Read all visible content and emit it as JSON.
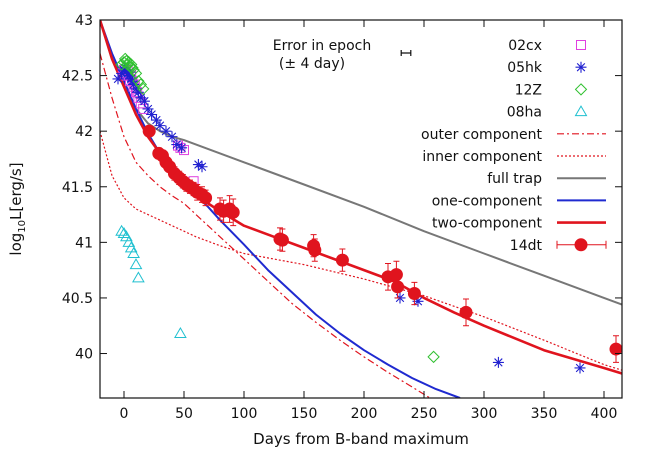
{
  "chart_data": {
    "type": "scatter",
    "title": "",
    "xlabel": "Days from B-band maximum",
    "ylabel_main": "log",
    "ylabel_sub": "10",
    "ylabel_rest": "L[erg/s]",
    "xlim": [
      -20,
      415
    ],
    "ylim": [
      39.6,
      43.0
    ],
    "x_ticks": [
      0,
      50,
      100,
      150,
      200,
      250,
      300,
      350,
      400
    ],
    "y_ticks": [
      40,
      40.5,
      41,
      41.5,
      42,
      42.5,
      43
    ],
    "y_tick_labels": [
      "40",
      "40.5",
      "41",
      "41.5",
      "42",
      "42.5",
      "43"
    ],
    "grid": false,
    "legend_position": "top-right",
    "annotation": {
      "line1": "Error in epoch",
      "line2": "(± 4 day)",
      "center_x": 235,
      "half_width": 4,
      "y": 42.7
    },
    "colors": {
      "c02cx": "#e040e0",
      "c05hk": "#2020d0",
      "c12Z": "#30c030",
      "c08ha": "#20c0d0",
      "red": "#e0141e",
      "gray": "#777777",
      "blue": "#1f2ad0"
    },
    "series": [
      {
        "name": "02cx",
        "kind": "points",
        "marker": "square",
        "color_key": "c02cx",
        "points": [
          [
            -1,
            42.52
          ],
          [
            0,
            42.55
          ],
          [
            1,
            42.55
          ],
          [
            2,
            42.5
          ],
          [
            3,
            42.55
          ],
          [
            4,
            42.5
          ],
          [
            5,
            42.45
          ],
          [
            6,
            42.5
          ],
          [
            7,
            42.45
          ],
          [
            8,
            42.4
          ],
          [
            9,
            42.42
          ],
          [
            10,
            42.35
          ],
          [
            11,
            42.35
          ],
          [
            12,
            42.3
          ],
          [
            14,
            42.25
          ],
          [
            16,
            42.2
          ],
          [
            45,
            41.87
          ],
          [
            47,
            41.85
          ],
          [
            50,
            41.83
          ],
          [
            58,
            41.55
          ]
        ]
      },
      {
        "name": "05hk",
        "kind": "points",
        "marker": "asterisk",
        "color_key": "c05hk",
        "points": [
          [
            -5,
            42.47
          ],
          [
            -2,
            42.52
          ],
          [
            0,
            42.55
          ],
          [
            1,
            42.57
          ],
          [
            2,
            42.54
          ],
          [
            3,
            42.52
          ],
          [
            4,
            42.5
          ],
          [
            5,
            42.53
          ],
          [
            6,
            42.47
          ],
          [
            7,
            42.45
          ],
          [
            8,
            42.42
          ],
          [
            10,
            42.38
          ],
          [
            12,
            42.35
          ],
          [
            14,
            42.3
          ],
          [
            17,
            42.27
          ],
          [
            20,
            42.2
          ],
          [
            23,
            42.15
          ],
          [
            27,
            42.1
          ],
          [
            30,
            42.05
          ],
          [
            35,
            42.0
          ],
          [
            40,
            41.95
          ],
          [
            44,
            41.88
          ],
          [
            48,
            41.85
          ],
          [
            62,
            41.7
          ],
          [
            65,
            41.68
          ],
          [
            230,
            40.5
          ],
          [
            245,
            40.47
          ],
          [
            312,
            39.92
          ],
          [
            380,
            39.87
          ]
        ]
      },
      {
        "name": "12Z",
        "kind": "points",
        "marker": "diamond",
        "color_key": "c12Z",
        "points": [
          [
            -2,
            42.6
          ],
          [
            0,
            42.62
          ],
          [
            1,
            42.65
          ],
          [
            2,
            42.63
          ],
          [
            3,
            42.6
          ],
          [
            4,
            42.62
          ],
          [
            5,
            42.58
          ],
          [
            6,
            42.6
          ],
          [
            7,
            42.57
          ],
          [
            8,
            42.55
          ],
          [
            10,
            42.52
          ],
          [
            12,
            42.45
          ],
          [
            14,
            42.42
          ],
          [
            16,
            42.38
          ],
          [
            258,
            39.97
          ]
        ]
      },
      {
        "name": "08ha",
        "kind": "points",
        "marker": "triangle",
        "color_key": "c08ha",
        "points": [
          [
            -2,
            41.1
          ],
          [
            0,
            41.08
          ],
          [
            2,
            41.05
          ],
          [
            4,
            41.0
          ],
          [
            6,
            40.95
          ],
          [
            8,
            40.9
          ],
          [
            10,
            40.8
          ],
          [
            12,
            40.68
          ],
          [
            47,
            40.18
          ]
        ]
      },
      {
        "name": "outer component",
        "kind": "line",
        "style": "dashdot",
        "color_key": "red",
        "points": [
          [
            -20,
            42.7
          ],
          [
            -10,
            42.3
          ],
          [
            0,
            41.95
          ],
          [
            10,
            41.72
          ],
          [
            20,
            41.6
          ],
          [
            30,
            41.5
          ],
          [
            40,
            41.42
          ],
          [
            50,
            41.35
          ],
          [
            60,
            41.25
          ],
          [
            80,
            41.05
          ],
          [
            100,
            40.85
          ],
          [
            120,
            40.65
          ],
          [
            140,
            40.45
          ],
          [
            160,
            40.28
          ],
          [
            180,
            40.12
          ],
          [
            200,
            39.97
          ],
          [
            220,
            39.83
          ],
          [
            240,
            39.7
          ],
          [
            255,
            39.6
          ]
        ]
      },
      {
        "name": "inner component",
        "kind": "line",
        "style": "dotted",
        "color_key": "red",
        "points": [
          [
            -20,
            42.0
          ],
          [
            -10,
            41.6
          ],
          [
            0,
            41.4
          ],
          [
            10,
            41.3
          ],
          [
            20,
            41.25
          ],
          [
            30,
            41.2
          ],
          [
            40,
            41.15
          ],
          [
            50,
            41.1
          ],
          [
            60,
            41.05
          ],
          [
            80,
            40.97
          ],
          [
            100,
            40.9
          ],
          [
            150,
            40.8
          ],
          [
            200,
            40.67
          ],
          [
            250,
            40.52
          ],
          [
            300,
            40.33
          ],
          [
            350,
            40.12
          ],
          [
            400,
            39.9
          ],
          [
            415,
            39.85
          ]
        ]
      },
      {
        "name": "full trap",
        "kind": "line",
        "style": "solid",
        "color_key": "gray",
        "points": [
          [
            -20,
            43.0
          ],
          [
            -10,
            42.65
          ],
          [
            0,
            42.4
          ],
          [
            10,
            42.2
          ],
          [
            20,
            42.07
          ],
          [
            30,
            42.0
          ],
          [
            40,
            41.95
          ],
          [
            50,
            41.92
          ],
          [
            100,
            41.72
          ],
          [
            150,
            41.52
          ],
          [
            200,
            41.32
          ],
          [
            250,
            41.1
          ],
          [
            300,
            40.9
          ],
          [
            350,
            40.7
          ],
          [
            400,
            40.5
          ],
          [
            415,
            40.44
          ]
        ]
      },
      {
        "name": "one-component",
        "kind": "line",
        "style": "solid",
        "color_key": "blue",
        "points": [
          [
            -20,
            43.0
          ],
          [
            -10,
            42.7
          ],
          [
            0,
            42.45
          ],
          [
            10,
            42.2
          ],
          [
            20,
            41.98
          ],
          [
            30,
            41.8
          ],
          [
            40,
            41.65
          ],
          [
            50,
            41.52
          ],
          [
            60,
            41.42
          ],
          [
            70,
            41.32
          ],
          [
            80,
            41.2
          ],
          [
            100,
            40.98
          ],
          [
            120,
            40.75
          ],
          [
            140,
            40.55
          ],
          [
            160,
            40.35
          ],
          [
            180,
            40.18
          ],
          [
            200,
            40.03
          ],
          [
            220,
            39.9
          ],
          [
            240,
            39.78
          ],
          [
            260,
            39.68
          ],
          [
            280,
            39.6
          ]
        ]
      },
      {
        "name": "two-component",
        "kind": "line",
        "style": "solid",
        "color_key": "red",
        "points": [
          [
            -20,
            43.0
          ],
          [
            -10,
            42.65
          ],
          [
            0,
            42.4
          ],
          [
            10,
            42.15
          ],
          [
            20,
            41.95
          ],
          [
            30,
            41.8
          ],
          [
            40,
            41.65
          ],
          [
            50,
            41.52
          ],
          [
            60,
            41.42
          ],
          [
            70,
            41.35
          ],
          [
            80,
            41.28
          ],
          [
            100,
            41.15
          ],
          [
            125,
            41.05
          ],
          [
            150,
            40.95
          ],
          [
            175,
            40.85
          ],
          [
            200,
            40.75
          ],
          [
            225,
            40.65
          ],
          [
            250,
            40.5
          ],
          [
            275,
            40.37
          ],
          [
            300,
            40.25
          ],
          [
            350,
            40.03
          ],
          [
            400,
            39.87
          ],
          [
            415,
            39.82
          ]
        ]
      },
      {
        "name": "14dt",
        "kind": "points",
        "marker": "circle-errorbar",
        "color_key": "red",
        "points": [
          [
            21,
            42.0,
            0.04
          ],
          [
            29,
            41.8,
            0.05
          ],
          [
            32,
            41.78,
            0.05
          ],
          [
            35,
            41.72,
            0.05
          ],
          [
            38,
            41.68,
            0.05
          ],
          [
            42,
            41.62,
            0.06
          ],
          [
            46,
            41.58,
            0.06
          ],
          [
            49,
            41.55,
            0.06
          ],
          [
            52,
            41.52,
            0.06
          ],
          [
            55,
            41.5,
            0.06
          ],
          [
            58,
            41.48,
            0.06
          ],
          [
            61,
            41.45,
            0.07
          ],
          [
            65,
            41.43,
            0.07
          ],
          [
            68,
            41.4,
            0.07
          ],
          [
            80,
            41.3,
            0.1
          ],
          [
            83,
            41.28,
            0.1
          ],
          [
            88,
            41.3,
            0.12
          ],
          [
            91,
            41.27,
            0.12
          ],
          [
            130,
            41.03,
            0.1
          ],
          [
            132,
            41.02,
            0.1
          ],
          [
            158,
            40.97,
            0.1
          ],
          [
            159,
            40.93,
            0.1
          ],
          [
            182,
            40.84,
            0.1
          ],
          [
            220,
            40.69,
            0.12
          ],
          [
            227,
            40.71,
            0.12
          ],
          [
            228,
            40.6,
            0.1
          ],
          [
            242,
            40.54,
            0.1
          ],
          [
            285,
            40.37,
            0.12
          ],
          [
            410,
            40.04,
            0.12
          ]
        ]
      }
    ]
  }
}
